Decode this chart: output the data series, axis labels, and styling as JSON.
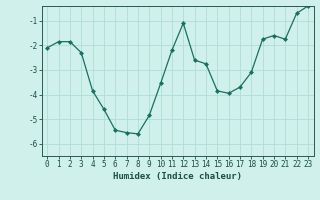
{
  "xlabel": "Humidex (Indice chaleur)",
  "x": [
    0,
    1,
    2,
    3,
    4,
    5,
    6,
    7,
    8,
    9,
    10,
    11,
    12,
    13,
    14,
    15,
    16,
    17,
    18,
    19,
    20,
    21,
    22,
    23
  ],
  "y": [
    -2.1,
    -1.85,
    -1.85,
    -2.3,
    -3.85,
    -4.6,
    -5.45,
    -5.55,
    -5.6,
    -4.85,
    -3.55,
    -2.2,
    -1.1,
    -2.6,
    -2.75,
    -3.85,
    -3.95,
    -3.7,
    -3.1,
    -1.75,
    -1.6,
    -1.75,
    -0.7,
    -0.4
  ],
  "line_color": "#1a7060",
  "marker": "D",
  "markersize": 2.0,
  "linewidth": 0.9,
  "bg_color": "#cff0eb",
  "grid_color": "#b0ddd7",
  "axes_color": "#2a5a50",
  "tick_color": "#1a5040",
  "ylim": [
    -6.5,
    -0.4
  ],
  "yticks": [
    -6,
    -5,
    -4,
    -3,
    -2,
    -1
  ],
  "xlim": [
    -0.5,
    23.5
  ],
  "xticks": [
    0,
    1,
    2,
    3,
    4,
    5,
    6,
    7,
    8,
    9,
    10,
    11,
    12,
    13,
    14,
    15,
    16,
    17,
    18,
    19,
    20,
    21,
    22,
    23
  ],
  "xlabel_fontsize": 6.5,
  "tick_fontsize": 5.5
}
